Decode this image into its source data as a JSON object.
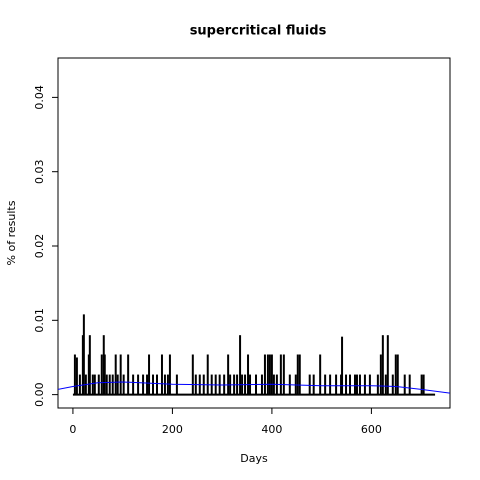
{
  "chart_data": {
    "type": "spike",
    "title": "supercritical fluids",
    "x_label": "Days",
    "y_label": "% of results",
    "xlim": [
      -30,
      758
    ],
    "ylim": [
      -0.0018,
      0.0453
    ],
    "xticks": [
      0,
      200,
      400,
      600
    ],
    "yticks": [
      {
        "value": 0,
        "label": "0.00"
      },
      0.01,
      0.02,
      0.03,
      0.04
    ],
    "series": [
      {
        "name": "results",
        "color": "#000000",
        "kind": "spike",
        "x": [
          0,
          4,
          8,
          14,
          20,
          22,
          26,
          32,
          34,
          40,
          44,
          52,
          58,
          62,
          64,
          68,
          74,
          80,
          86,
          90,
          96,
          102,
          111,
          121,
          131,
          141,
          149,
          153,
          161,
          169,
          179,
          185,
          191,
          195,
          209,
          241,
          247,
          255,
          263,
          271,
          279,
          287,
          295,
          304,
          312,
          316,
          324,
          330,
          336,
          340,
          346,
          352,
          356,
          368,
          380,
          386,
          392,
          396,
          400,
          404,
          410,
          418,
          424,
          436,
          448,
          452,
          456,
          476,
          484,
          497,
          507,
          517,
          529,
          539,
          541,
          549,
          557,
          567,
          571,
          577,
          587,
          597,
          613,
          619,
          623,
          629,
          633,
          643,
          649,
          653,
          667,
          677,
          701,
          705,
          728
        ],
        "values": [
          0,
          0.0054,
          0.005,
          0.0027,
          0.008,
          0.0108,
          0.0027,
          0.0054,
          0.008,
          0.0027,
          0.0027,
          0.0027,
          0.0054,
          0.008,
          0.0054,
          0.0027,
          0.0027,
          0.0027,
          0.0054,
          0.0027,
          0.0054,
          0.0027,
          0.0054,
          0.0027,
          0.0027,
          0.0027,
          0.0027,
          0.0054,
          0.0027,
          0.0027,
          0.0054,
          0.0027,
          0.0027,
          0.0054,
          0.0027,
          0.0054,
          0.0027,
          0.0027,
          0.0027,
          0.0054,
          0.0027,
          0.0027,
          0.0027,
          0.0027,
          0.0054,
          0.0027,
          0.0027,
          0.0027,
          0.008,
          0.0027,
          0.0027,
          0.0054,
          0.0027,
          0.0027,
          0.0027,
          0.0054,
          0.0054,
          0.0054,
          0.0054,
          0.0027,
          0.0027,
          0.0054,
          0.0054,
          0.0027,
          0.0027,
          0.0054,
          0.0054,
          0.0027,
          0.0027,
          0.0054,
          0.0027,
          0.0027,
          0.0027,
          0.0027,
          0.0078,
          0.0027,
          0.0027,
          0.0027,
          0.0027,
          0.0027,
          0.0027,
          0.0027,
          0.0027,
          0.0054,
          0.008,
          0.0027,
          0.008,
          0.0027,
          0.0054,
          0.0054,
          0.0027,
          0.0027,
          0.0027,
          0.0027,
          0
        ]
      },
      {
        "name": "trend",
        "color": "#0000ff",
        "kind": "line",
        "x": [
          -30,
          0,
          50,
          100,
          200,
          300,
          400,
          500,
          600,
          650,
          700,
          758
        ],
        "values": [
          0.0007,
          0.0011,
          0.0016,
          0.0017,
          0.0014,
          0.0013,
          0.0014,
          0.0012,
          0.0012,
          0.0011,
          0.0007,
          0.0002
        ]
      }
    ]
  }
}
